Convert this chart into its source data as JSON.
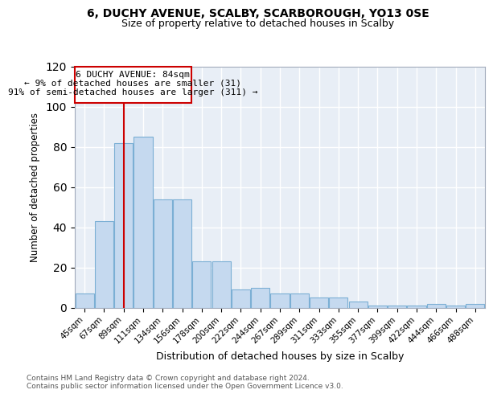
{
  "title1": "6, DUCHY AVENUE, SCALBY, SCARBOROUGH, YO13 0SE",
  "title2": "Size of property relative to detached houses in Scalby",
  "xlabel": "Distribution of detached houses by size in Scalby",
  "ylabel": "Number of detached properties",
  "categories": [
    "45sqm",
    "67sqm",
    "89sqm",
    "111sqm",
    "134sqm",
    "156sqm",
    "178sqm",
    "200sqm",
    "222sqm",
    "244sqm",
    "267sqm",
    "289sqm",
    "311sqm",
    "333sqm",
    "355sqm",
    "377sqm",
    "399sqm",
    "422sqm",
    "444sqm",
    "466sqm",
    "488sqm"
  ],
  "values": [
    7,
    43,
    82,
    85,
    54,
    54,
    23,
    23,
    9,
    10,
    7,
    7,
    5,
    5,
    3,
    1,
    1,
    1,
    2,
    1,
    2
  ],
  "bar_color": "#c5d9ef",
  "bar_edge_color": "#7bafd4",
  "annotation_line1": "6 DUCHY AVENUE: 84sqm",
  "annotation_line2": "← 9% of detached houses are smaller (31)",
  "annotation_line3": "91% of semi-detached houses are larger (311) →",
  "red_color": "#cc0000",
  "ylim": [
    0,
    120
  ],
  "yticks": [
    0,
    20,
    40,
    60,
    80,
    100,
    120
  ],
  "background_color": "#e8eef6",
  "grid_color": "#ffffff",
  "footer_line1": "Contains HM Land Registry data © Crown copyright and database right 2024.",
  "footer_line2": "Contains public sector information licensed under the Open Government Licence v3.0."
}
